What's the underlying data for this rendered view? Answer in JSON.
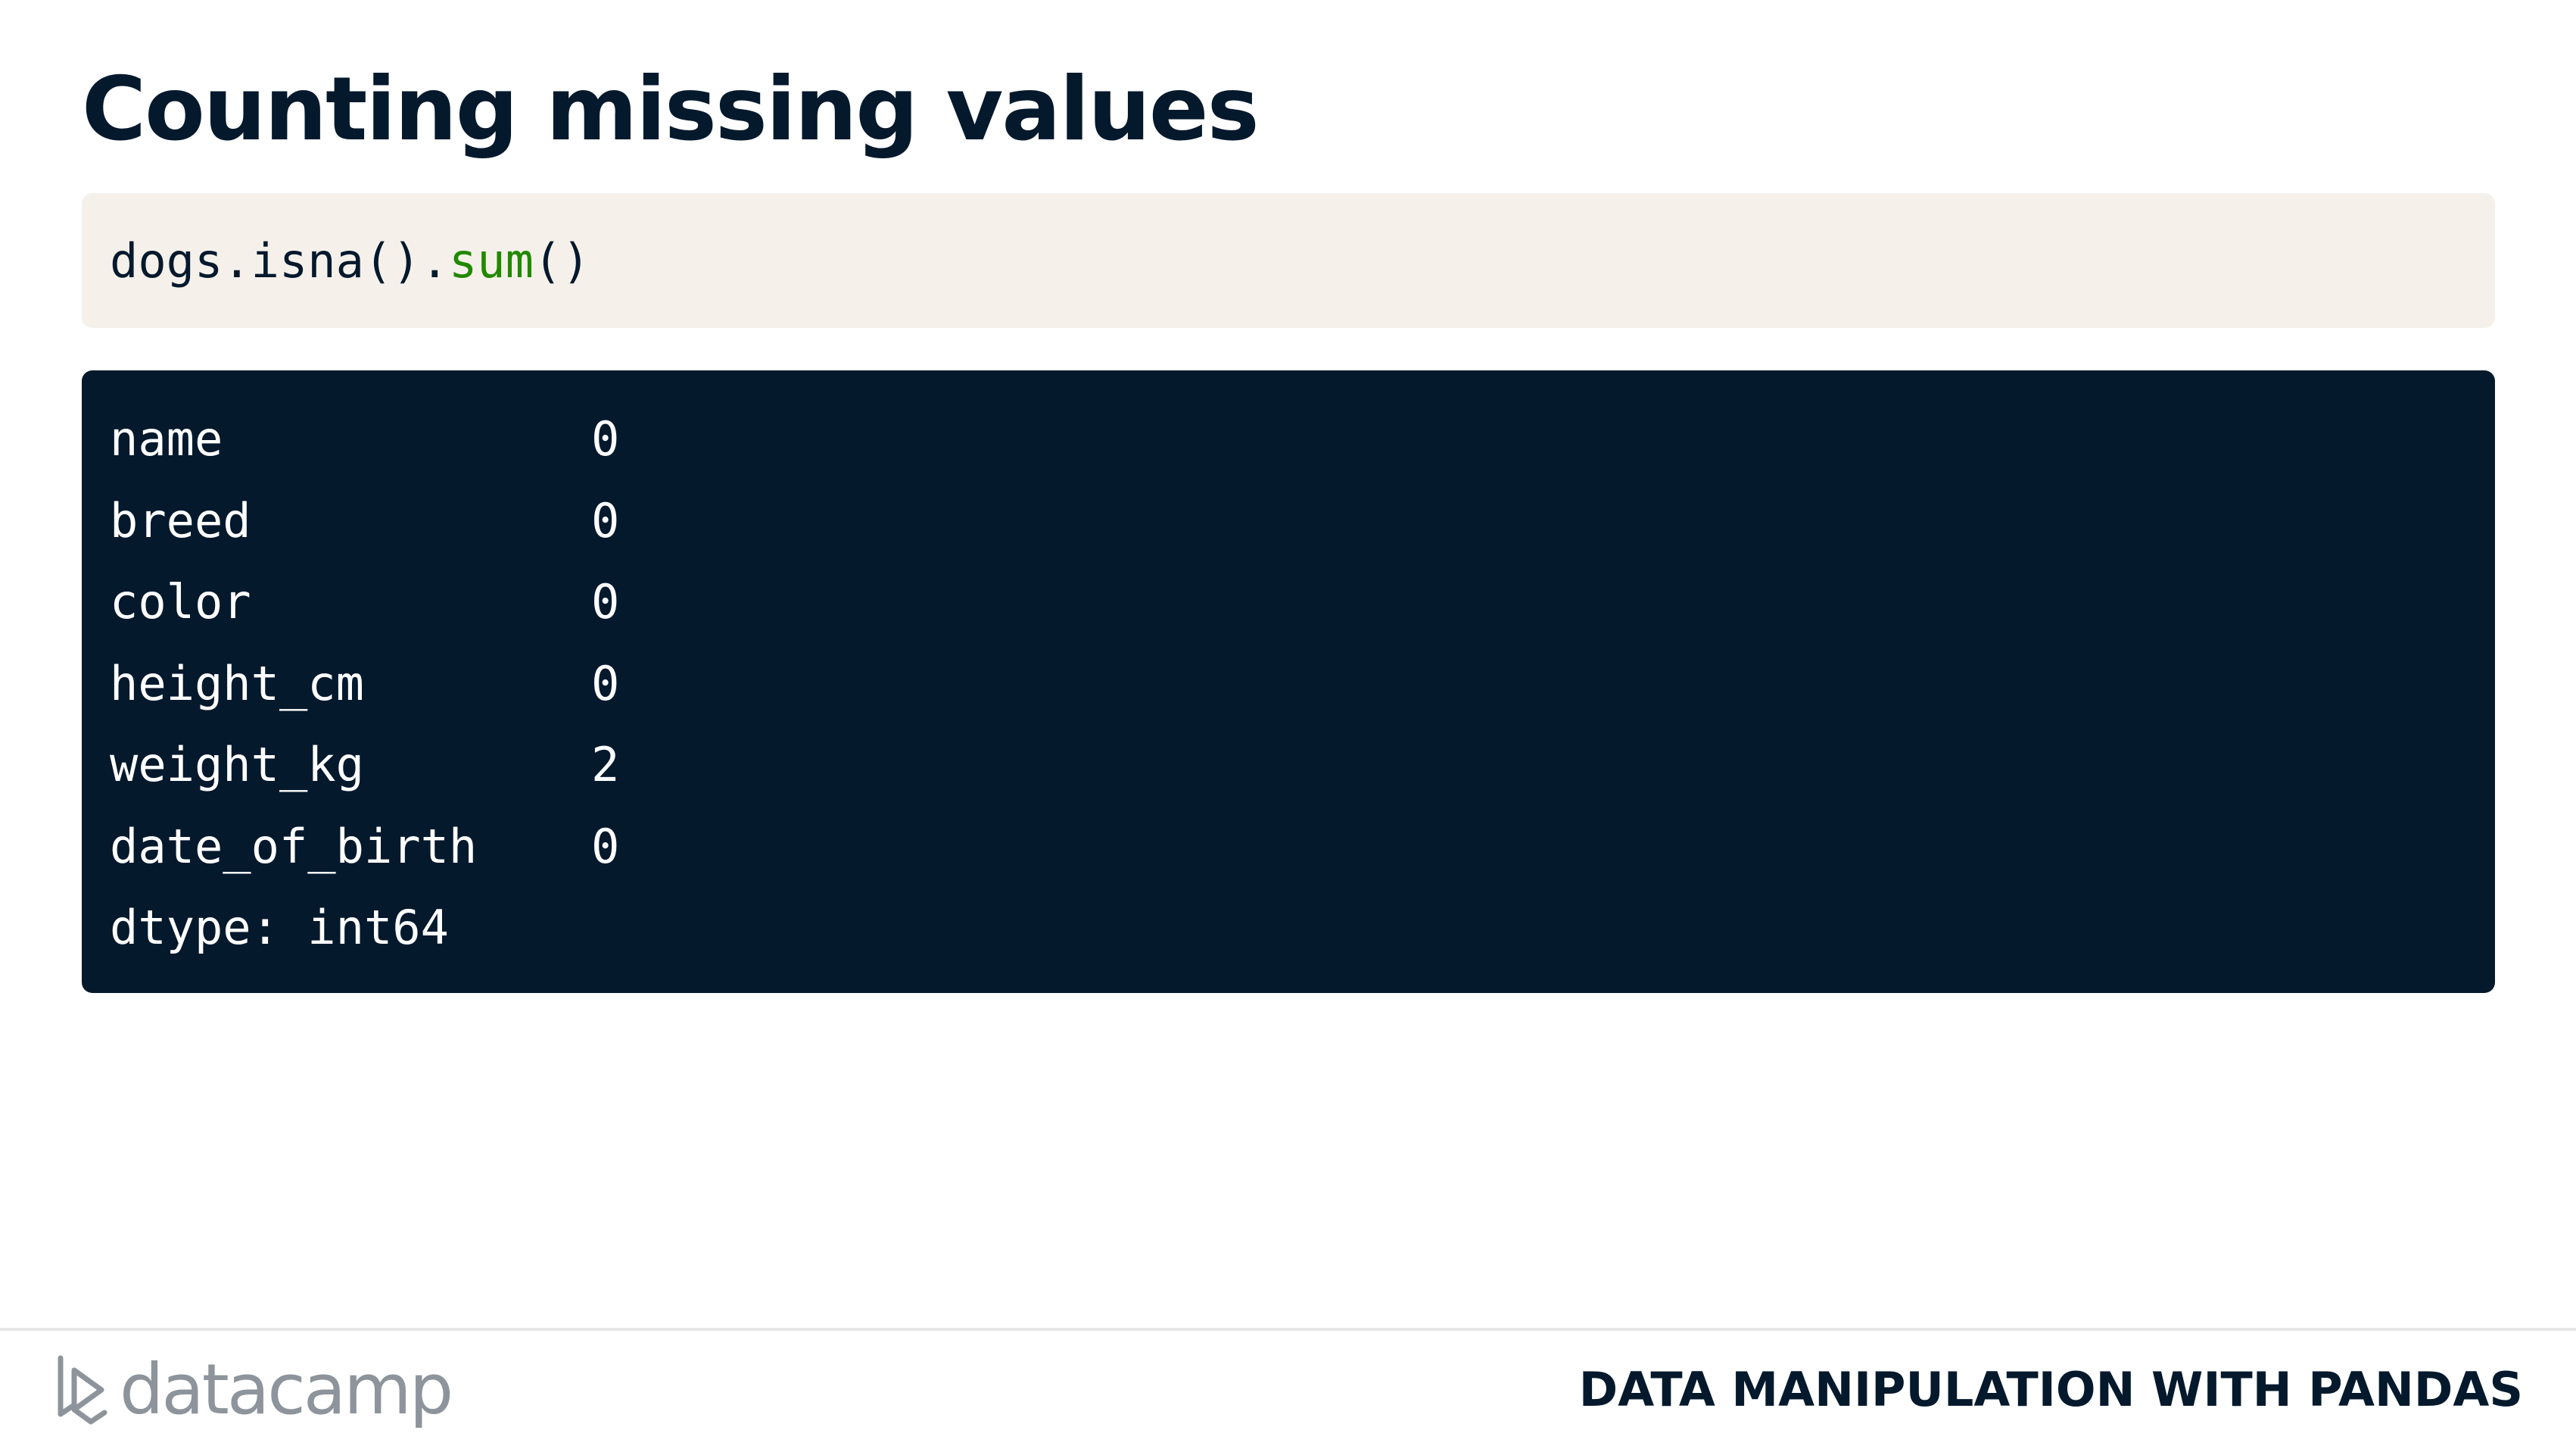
{
  "slide": {
    "title": "Counting missing values"
  },
  "code": {
    "object": "dogs.isna().",
    "method": "sum",
    "call_suffix": "()"
  },
  "output": {
    "rows": [
      {
        "column": "name",
        "count": "0"
      },
      {
        "column": "breed",
        "count": "0"
      },
      {
        "column": "color",
        "count": "0"
      },
      {
        "column": "height_cm",
        "count": "0"
      },
      {
        "column": "weight_kg",
        "count": "2"
      },
      {
        "column": "date_of_birth",
        "count": "0"
      }
    ],
    "dtype_line": "dtype: int64"
  },
  "footer": {
    "logo_text": "datacamp",
    "logo_icon": "datacamp-logo-icon",
    "course_name": "DATA MANIPULATION WITH PANDAS"
  },
  "colors": {
    "title": "#05192d",
    "code_bg": "#f5f1ea",
    "method": "#218900",
    "output_bg": "#05192d",
    "output_text": "#ffffff",
    "logo": "#8d949b"
  }
}
